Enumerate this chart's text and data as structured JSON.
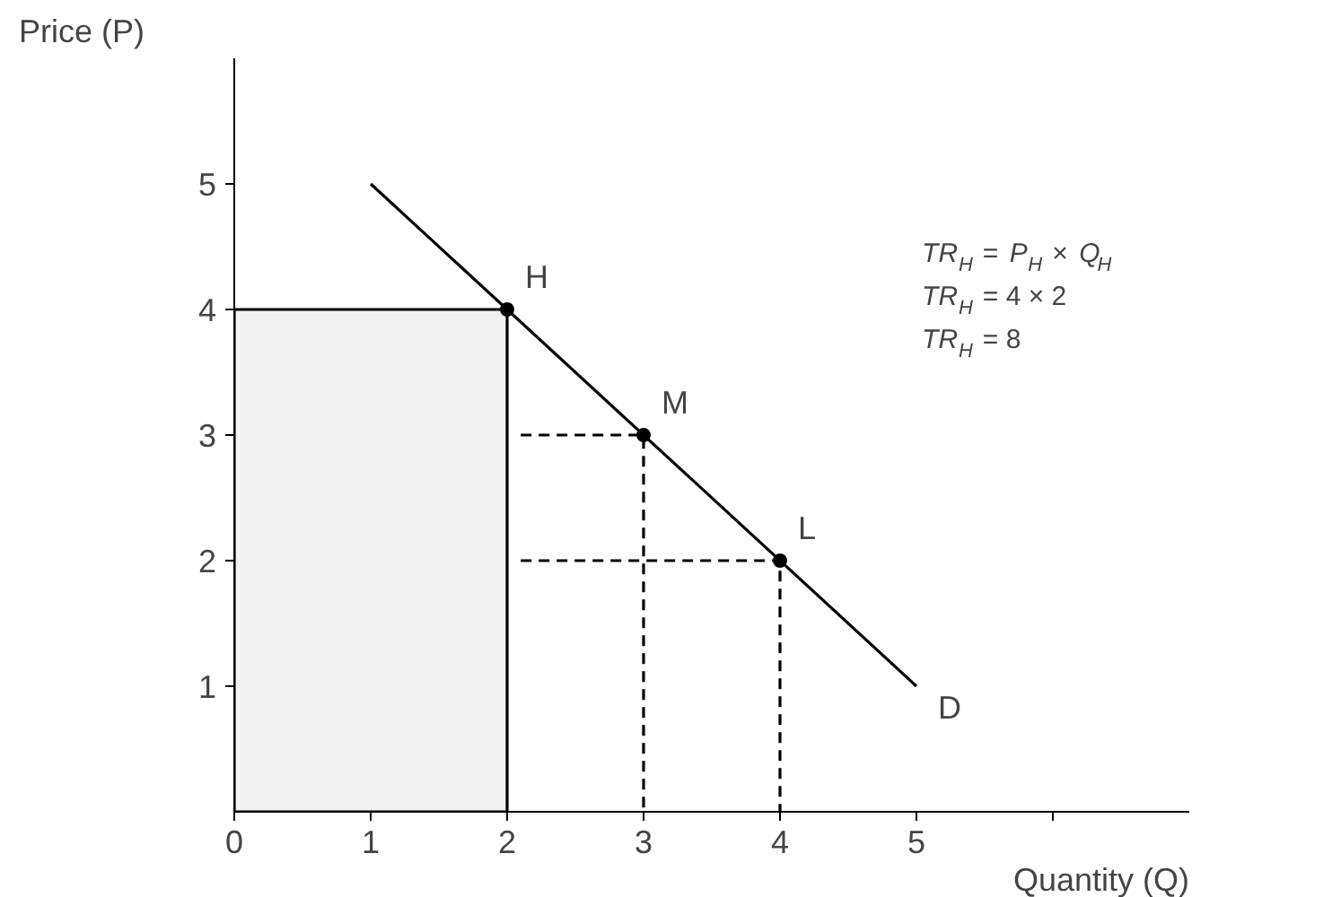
{
  "chart_data": {
    "type": "line",
    "xlabel": "Quantity (Q)",
    "ylabel": "Price (P)",
    "xlim": [
      0,
      7
    ],
    "ylim": [
      0,
      6
    ],
    "xticks": [
      0,
      1,
      2,
      3,
      4,
      5,
      {
        "value": 6,
        "label": null
      }
    ],
    "yticks": [
      1,
      2,
      3,
      4,
      5
    ],
    "grid": false,
    "series": [
      {
        "name": "D",
        "color": "#000000",
        "x": [
          1,
          5
        ],
        "values": [
          5,
          1
        ],
        "line_style": "solid",
        "marker": "none"
      },
      {
        "color": "#000000",
        "x": [
          2.1,
          3,
          3
        ],
        "values": [
          3,
          3,
          0
        ],
        "line_style": "dashed",
        "marker": "none"
      },
      {
        "color": "#000000",
        "x": [
          2.1,
          4,
          4
        ],
        "values": [
          2,
          2,
          0
        ],
        "line_style": "dashed",
        "marker": "none"
      },
      {
        "type": "area",
        "color": "#f2f2f2",
        "x": [
          0,
          2
        ],
        "values": [
          4,
          4
        ]
      },
      {
        "type": "scatter",
        "color": "#000000",
        "x": [
          2,
          3,
          4
        ],
        "values": [
          4,
          3,
          2
        ],
        "marker": "circle"
      }
    ],
    "annotations": [
      {
        "text": "H",
        "x": 2,
        "y": 4
      },
      {
        "text": "M",
        "x": 3,
        "y": 3
      },
      {
        "text": "L",
        "x": 4,
        "y": 2
      },
      "TR$_{H}$ = P$_{H}$ × Q$_{H}$",
      "TR$_{H}$ = 4 × 2",
      "TR$_{H}$ = 8"
    ]
  }
}
